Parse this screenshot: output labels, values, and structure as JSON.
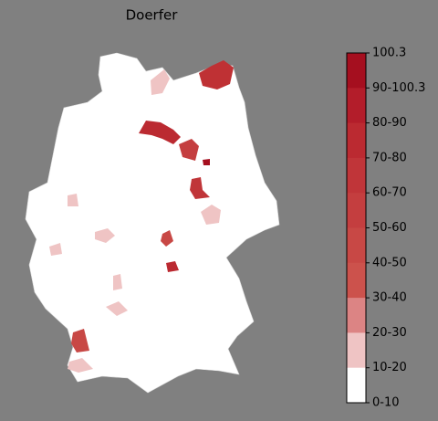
{
  "title": "Doerfer",
  "legend": {
    "labels": [
      "100.3",
      "90-100.3",
      "80-90",
      "70-80",
      "60-70",
      "50-60",
      "40-50",
      "30-40",
      "20-30",
      "10-20",
      "0-10"
    ],
    "colors": [
      "#a50f1f",
      "#b31d2a",
      "#bb2a31",
      "#c03539",
      "#c43e3f",
      "#c84845",
      "#cc524c",
      "#dc8484",
      "#efc4c4",
      "#ffffff"
    ]
  }
}
